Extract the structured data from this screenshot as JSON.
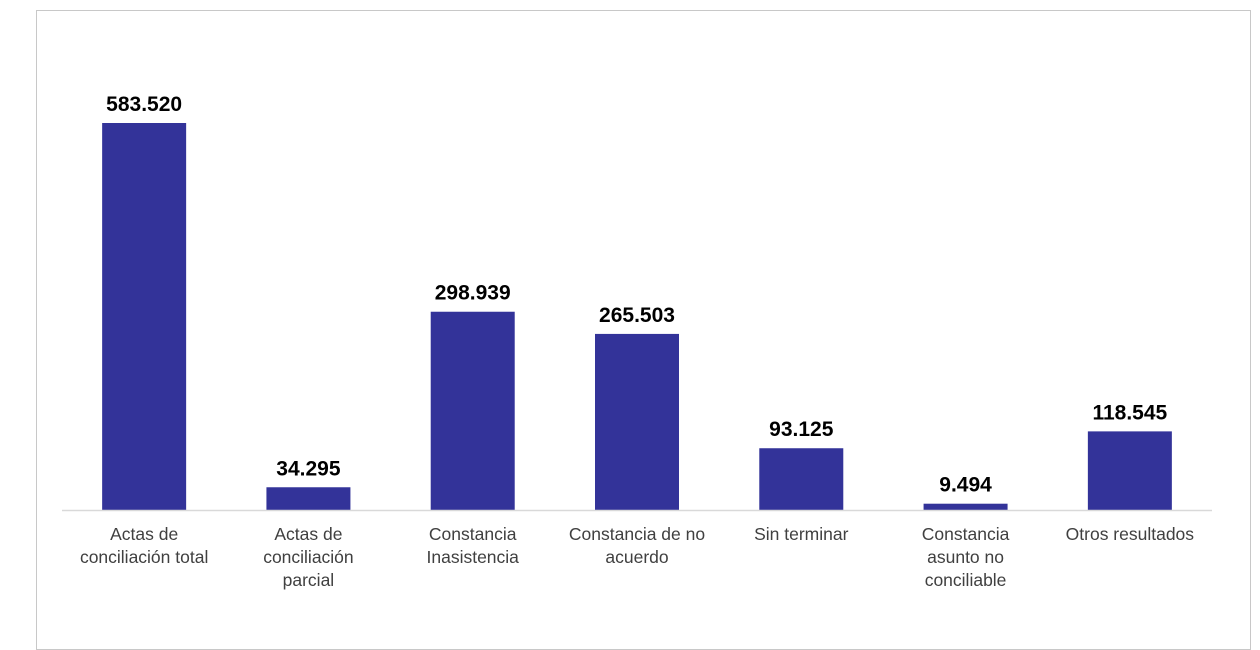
{
  "chart_data": {
    "type": "bar",
    "title": "",
    "categories": [
      [
        "Actas de",
        "conciliación total"
      ],
      [
        "Actas de",
        "conciliación",
        "parcial"
      ],
      [
        "Constancia",
        "Inasistencia"
      ],
      [
        "Constancia de no",
        "acuerdo"
      ],
      [
        "Sin terminar"
      ],
      [
        "Constancia",
        "asunto no",
        "conciliable"
      ],
      [
        "Otros resultados"
      ]
    ],
    "values": [
      583520,
      34295,
      298939,
      265503,
      93125,
      9494,
      118545
    ],
    "value_labels": [
      "583.520",
      "34.295",
      "298.939",
      "265.503",
      "93.125",
      "9.494",
      "118.545"
    ],
    "ylim": [
      0,
      583520
    ],
    "grid": false,
    "bar_color": "#333399",
    "axis_color": "#d9d9d9"
  }
}
